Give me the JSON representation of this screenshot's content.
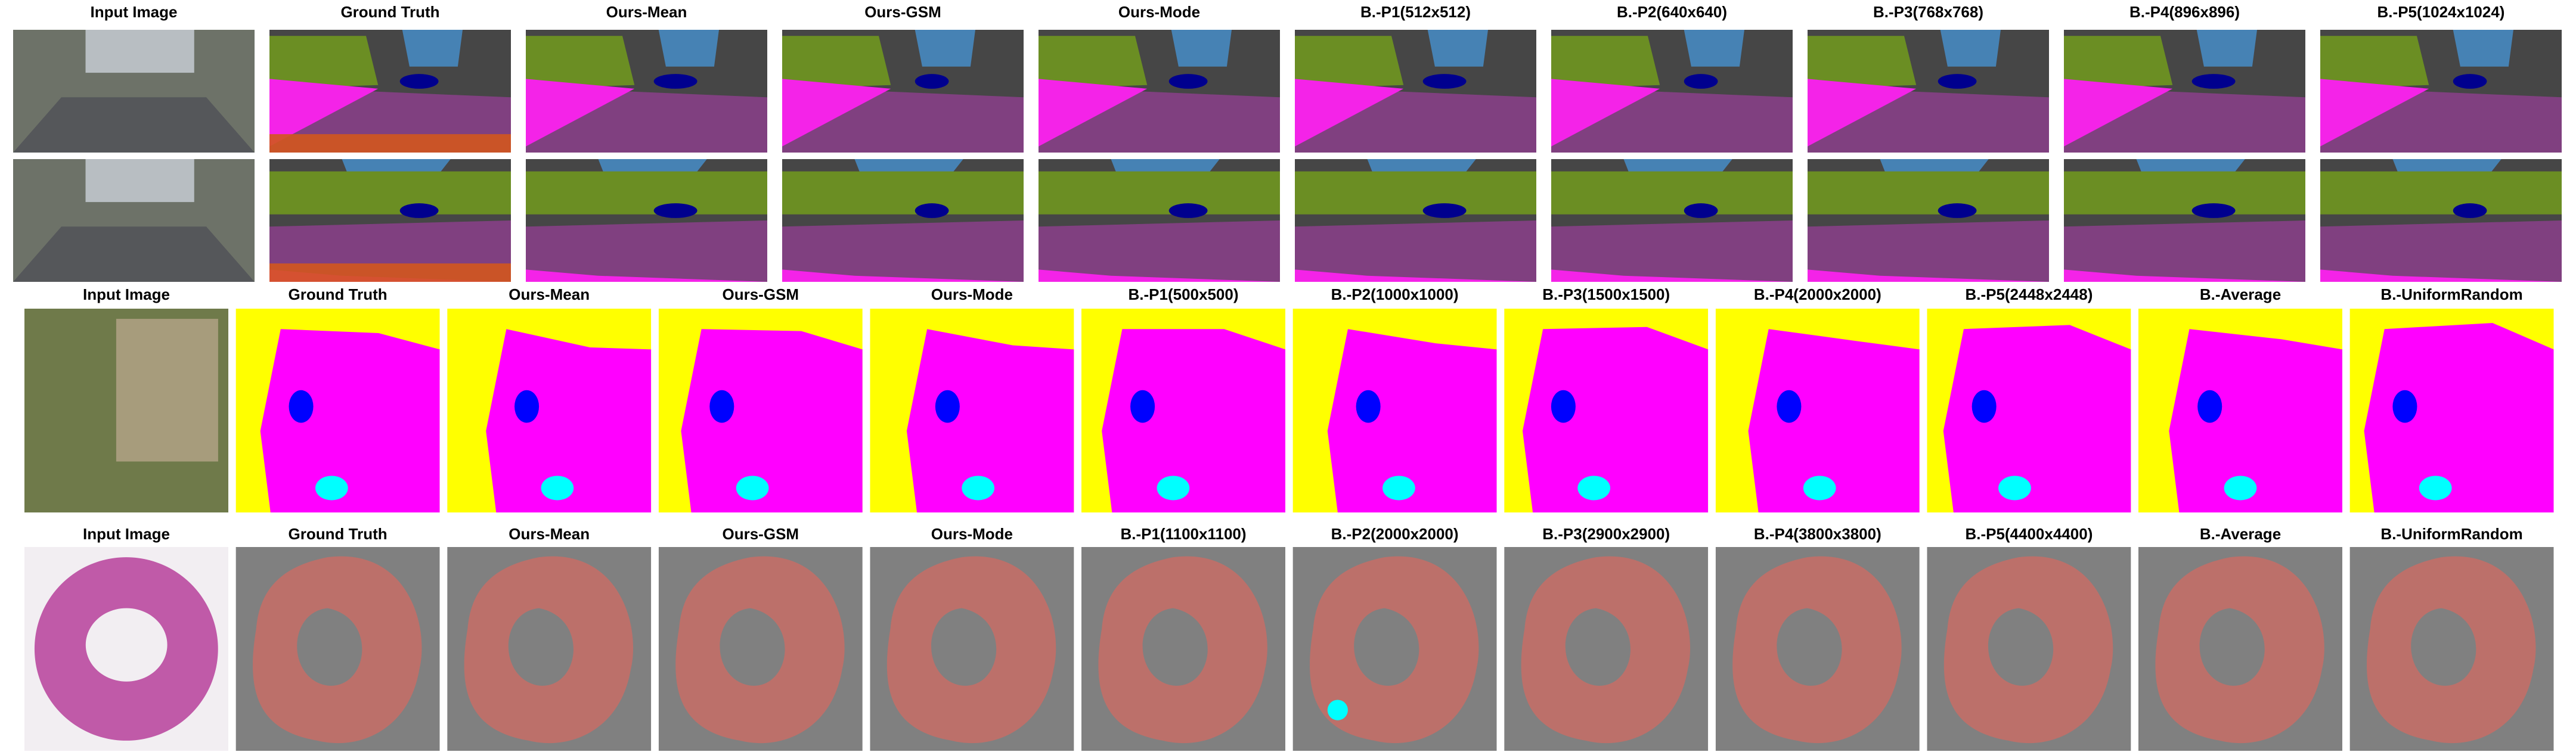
{
  "figure": {
    "groups": [
      {
        "titles": [
          "Input Image",
          "Ground Truth",
          "Ours-Mean",
          "Ours-GSM",
          "Ours-Mode",
          "B.-P1(512x512)",
          "B.-P2(640x640)",
          "B.-P3(768x768)",
          "B.-P4(896x896)",
          "B.-P5(1024x1024)"
        ]
      },
      {
        "titles": [
          "Input Image",
          "Ground Truth",
          "Ours-Mean",
          "Ours-GSM",
          "Ours-Mode",
          "B.-P1(500x500)",
          "B.-P2(1000x1000)",
          "B.-P3(1500x1500)",
          "B.-P4(2000x2000)",
          "B.-P5(2448x2448)",
          "B.-Average",
          "B.-UniformRandom"
        ]
      },
      {
        "titles": [
          "Input Image",
          "Ground Truth",
          "Ours-Mean",
          "Ours-GSM",
          "Ours-Mode",
          "B.-P1(1100x1100)",
          "B.-P2(2000x2000)",
          "B.-P3(2900x2900)",
          "B.-P4(3800x3800)",
          "B.-P5(4400x4400)",
          "B.-Average",
          "B.-UniformRandom"
        ]
      }
    ]
  }
}
